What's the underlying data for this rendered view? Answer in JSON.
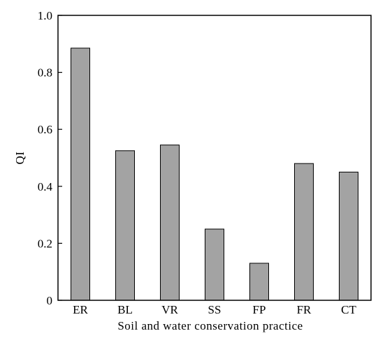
{
  "chart_data": {
    "type": "bar",
    "categories": [
      "ER",
      "BL",
      "VR",
      "SS",
      "FP",
      "FR",
      "CT"
    ],
    "values": [
      0.885,
      0.525,
      0.545,
      0.25,
      0.13,
      0.48,
      0.45
    ],
    "title": "",
    "xlabel": "Soil and water conservation practice",
    "ylabel": "QI",
    "ylim": [
      0,
      1.0
    ],
    "yticks": [
      "0",
      "0.2",
      "0.4",
      "0.6",
      "0.8",
      "1.0"
    ],
    "grid": false,
    "bar_color": "#a3a3a3",
    "bar_edge_color": "#000000"
  }
}
